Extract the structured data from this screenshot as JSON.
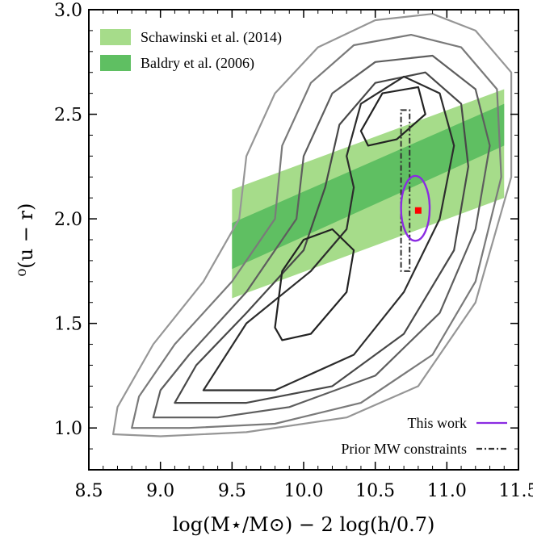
{
  "chart_data": {
    "type": "contour",
    "xlabel": "log(M⋆/M⊙) − 2 log(h/0.7)",
    "ylabel": "⁰(u − r)",
    "xlim": [
      8.5,
      11.5
    ],
    "ylim": [
      0.8,
      3.0
    ],
    "x_ticks": [
      8.5,
      9.0,
      9.5,
      10.0,
      10.5,
      11.0,
      11.5
    ],
    "y_ticks": [
      1.0,
      1.5,
      2.0,
      2.5,
      3.0
    ],
    "x_tick_labels": [
      "8.5",
      "9.0",
      "9.5",
      "10.0",
      "10.5",
      "11.0",
      "11.5"
    ],
    "y_tick_labels": [
      "1.0",
      "1.5",
      "2.0",
      "2.5",
      "3.0"
    ],
    "legend_top": [
      {
        "label": "Schawinski et al. (2014)",
        "color": "#a6dc8a"
      },
      {
        "label": "Baldry et al. (2006)",
        "color": "#5fbf62"
      }
    ],
    "legend_bottom": [
      {
        "label": "This work",
        "color": "#8b2be2",
        "style": "solid"
      },
      {
        "label": "Prior MW constraints",
        "color": "#333333",
        "style": "dashdot"
      }
    ],
    "bands": [
      {
        "name": "Schawinski et al. (2014)",
        "color": "#a6dc8a",
        "x": [
          9.5,
          11.4
        ],
        "lower": [
          1.62,
          2.1
        ],
        "upper": [
          2.14,
          2.62
        ]
      },
      {
        "name": "Baldry et al. (2006)",
        "color": "#5fbf62",
        "x": [
          9.5,
          11.4
        ],
        "lower": [
          1.76,
          2.35
        ],
        "upper": [
          1.98,
          2.55
        ]
      }
    ],
    "this_work": {
      "center": [
        10.78,
        2.05
      ],
      "semi_x": 0.1,
      "semi_y": 0.155,
      "color": "#8b2be2",
      "point": [
        10.8,
        2.04
      ],
      "point_color": "#ff0000"
    },
    "prior_mw_constraints": {
      "x": [
        10.68,
        10.74
      ],
      "y": [
        1.75,
        2.52
      ],
      "color": "#333333"
    },
    "contour_colors": [
      "#969696",
      "#7a7a7a",
      "#5e5e5e",
      "#484848",
      "#2c2c2c"
    ],
    "contours": [
      {
        "level": 1,
        "color": "#969696",
        "points": [
          [
            8.67,
            0.97
          ],
          [
            9.0,
            0.96
          ],
          [
            9.6,
            0.98
          ],
          [
            10.3,
            1.05
          ],
          [
            10.8,
            1.2
          ],
          [
            11.2,
            1.6
          ],
          [
            11.45,
            2.2
          ],
          [
            11.45,
            2.7
          ],
          [
            11.2,
            2.9
          ],
          [
            10.9,
            2.98
          ],
          [
            10.5,
            2.95
          ],
          [
            10.1,
            2.82
          ],
          [
            9.8,
            2.6
          ],
          [
            9.6,
            2.3
          ],
          [
            9.55,
            2.0
          ],
          [
            9.3,
            1.7
          ],
          [
            8.95,
            1.4
          ],
          [
            8.7,
            1.1
          ]
        ]
      },
      {
        "level": 2,
        "color": "#7a7a7a",
        "points": [
          [
            8.8,
            1.0
          ],
          [
            9.2,
            1.0
          ],
          [
            9.8,
            1.02
          ],
          [
            10.4,
            1.12
          ],
          [
            10.9,
            1.35
          ],
          [
            11.2,
            1.7
          ],
          [
            11.38,
            2.2
          ],
          [
            11.35,
            2.62
          ],
          [
            11.1,
            2.82
          ],
          [
            10.75,
            2.88
          ],
          [
            10.35,
            2.83
          ],
          [
            10.05,
            2.65
          ],
          [
            9.85,
            2.35
          ],
          [
            9.8,
            2.0
          ],
          [
            9.5,
            1.7
          ],
          [
            9.1,
            1.4
          ],
          [
            8.85,
            1.15
          ]
        ]
      },
      {
        "level": 3,
        "color": "#5e5e5e",
        "points": [
          [
            8.95,
            1.05
          ],
          [
            9.4,
            1.05
          ],
          [
            9.9,
            1.1
          ],
          [
            10.5,
            1.25
          ],
          [
            10.95,
            1.55
          ],
          [
            11.2,
            1.95
          ],
          [
            11.3,
            2.35
          ],
          [
            11.2,
            2.62
          ],
          [
            10.9,
            2.78
          ],
          [
            10.5,
            2.75
          ],
          [
            10.2,
            2.6
          ],
          [
            10.0,
            2.3
          ],
          [
            9.95,
            2.0
          ],
          [
            9.6,
            1.65
          ],
          [
            9.2,
            1.35
          ],
          [
            9.0,
            1.18
          ]
        ]
      },
      {
        "level": 4,
        "color": "#484848",
        "points": [
          [
            9.1,
            1.12
          ],
          [
            9.6,
            1.12
          ],
          [
            10.2,
            1.2
          ],
          [
            10.7,
            1.45
          ],
          [
            11.05,
            1.85
          ],
          [
            11.15,
            2.25
          ],
          [
            11.1,
            2.55
          ],
          [
            10.85,
            2.7
          ],
          [
            10.5,
            2.65
          ],
          [
            10.25,
            2.45
          ],
          [
            10.15,
            2.15
          ],
          [
            10.0,
            1.85
          ],
          [
            9.6,
            1.55
          ],
          [
            9.25,
            1.3
          ]
        ]
      },
      {
        "level": 5,
        "color": "#2c2c2c",
        "points": [
          [
            9.3,
            1.18
          ],
          [
            9.8,
            1.18
          ],
          [
            10.35,
            1.35
          ],
          [
            10.7,
            1.65
          ],
          [
            10.95,
            2.0
          ],
          [
            11.05,
            2.35
          ],
          [
            10.95,
            2.6
          ],
          [
            10.7,
            2.68
          ],
          [
            10.4,
            2.55
          ],
          [
            10.3,
            2.3
          ],
          [
            10.35,
            2.15
          ],
          [
            10.3,
            1.95
          ],
          [
            10.05,
            1.75
          ],
          [
            9.6,
            1.5
          ]
        ]
      },
      {
        "level": 6,
        "color": "#222222",
        "points": [
          [
            9.8,
            1.48
          ],
          [
            9.85,
            1.75
          ],
          [
            10.0,
            1.9
          ],
          [
            10.2,
            1.95
          ],
          [
            10.35,
            1.85
          ],
          [
            10.3,
            1.65
          ],
          [
            10.05,
            1.45
          ],
          [
            9.85,
            1.42
          ]
        ]
      },
      {
        "level": 7,
        "color": "#222222",
        "points": [
          [
            10.4,
            2.42
          ],
          [
            10.55,
            2.6
          ],
          [
            10.8,
            2.63
          ],
          [
            10.85,
            2.5
          ],
          [
            10.65,
            2.38
          ],
          [
            10.45,
            2.35
          ]
        ]
      }
    ]
  }
}
